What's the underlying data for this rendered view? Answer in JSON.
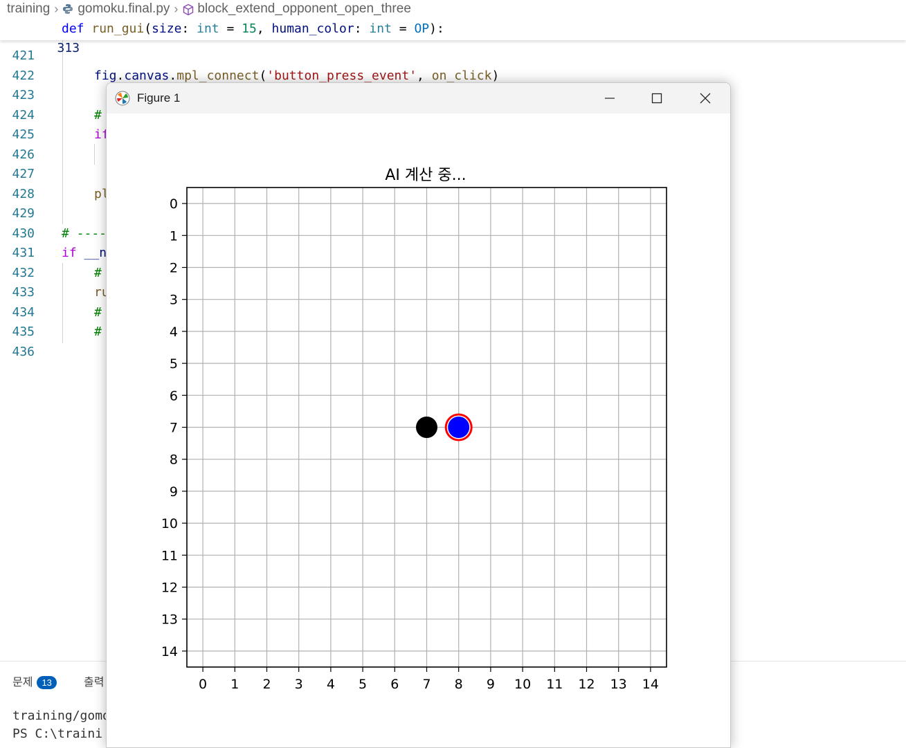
{
  "breadcrumb": [
    "training",
    "gomoku.final.py",
    "block_extend_opponent_open_three"
  ],
  "sticky_line": {
    "number": "313"
  },
  "code_lines": [
    {
      "number": "421"
    },
    {
      "number": "422"
    },
    {
      "number": "423"
    },
    {
      "number": "424"
    },
    {
      "number": "425"
    },
    {
      "number": "426"
    },
    {
      "number": "427"
    },
    {
      "number": "428"
    },
    {
      "number": "429"
    },
    {
      "number": "430"
    },
    {
      "number": "431"
    },
    {
      "number": "432"
    },
    {
      "number": "433"
    },
    {
      "number": "434"
    },
    {
      "number": "435"
    },
    {
      "number": "436"
    }
  ],
  "panel": {
    "problems_label": "문제",
    "problems_count": "13",
    "output_label": "출력",
    "terminal_line1": "training/gomo",
    "terminal_line2": "PS C:\\traini"
  },
  "figure_window": {
    "title": "Figure 1",
    "minimize": "—",
    "maximize": "☐",
    "close": "✕"
  },
  "colors": {
    "black_stone": "#000000",
    "blue_stone": "#0000ff",
    "last_move_ring": "#ff0000",
    "grid": "#b0b0b0"
  },
  "chart_data": {
    "type": "scatter",
    "title": "AI 계산 중...",
    "xlabel": "",
    "ylabel": "",
    "xlim": [
      -0.5,
      14.5
    ],
    "ylim": [
      14.5,
      -0.5
    ],
    "y_inverted": true,
    "grid": true,
    "x_ticks": [
      0,
      1,
      2,
      3,
      4,
      5,
      6,
      7,
      8,
      9,
      10,
      11,
      12,
      13,
      14
    ],
    "y_ticks": [
      0,
      1,
      2,
      3,
      4,
      5,
      6,
      7,
      8,
      9,
      10,
      11,
      12,
      13,
      14
    ],
    "series": [
      {
        "color": "#000000",
        "points": [
          {
            "x": 7,
            "y": 7
          }
        ]
      },
      {
        "color": "#0000ff",
        "points": [
          {
            "x": 8,
            "y": 7
          }
        ],
        "highlight_ring": "#ff0000"
      }
    ]
  }
}
